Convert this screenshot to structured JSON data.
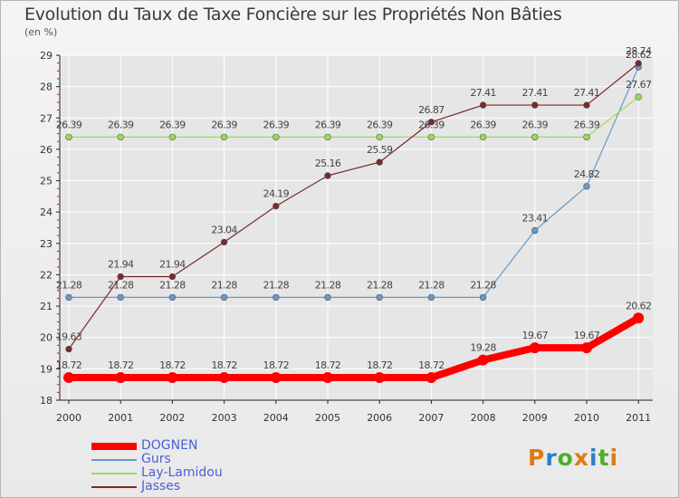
{
  "title": "Evolution du Taux de Taxe Foncière sur les Propriétés Non Bâties",
  "subtitle": "(en %)",
  "logo_text": "Proxiti",
  "chart_data": {
    "type": "line",
    "title": "Evolution du Taux de Taxe Foncière sur les Propriétés Non Bâties",
    "ylabel": "(en %)",
    "xlabel": "",
    "x": [
      "2000",
      "2001",
      "2002",
      "2003",
      "2004",
      "2005",
      "2006",
      "2007",
      "2008",
      "2009",
      "2010",
      "2011"
    ],
    "ylim": [
      18,
      29
    ],
    "yticks": [
      18,
      19,
      20,
      21,
      22,
      23,
      24,
      25,
      26,
      27,
      28,
      29
    ],
    "grid": true,
    "legend_position": "bottom-left",
    "series": [
      {
        "name": "DOGNEN",
        "color": "#ff0000",
        "emphasis": true,
        "values": [
          18.72,
          18.72,
          18.72,
          18.72,
          18.72,
          18.72,
          18.72,
          18.72,
          19.28,
          19.67,
          19.67,
          20.62
        ],
        "labels": [
          "18.72",
          "18.72",
          "18.72",
          "18.72",
          "18.72",
          "18.72",
          "18.72",
          "18.72",
          "19.28",
          "19.67",
          "19.67",
          "20.62"
        ]
      },
      {
        "name": "Gurs",
        "color": "#6699cc",
        "values": [
          21.28,
          21.28,
          21.28,
          21.28,
          21.28,
          21.28,
          21.28,
          21.28,
          21.28,
          23.41,
          24.82,
          28.62
        ],
        "labels": [
          "21.28",
          "21.28",
          "21.28",
          "21.28",
          "21.28",
          "21.28",
          "21.28",
          "21.28",
          "21.28",
          "23.41",
          "24.82",
          "28.62"
        ]
      },
      {
        "name": "Lay-Lamidou",
        "color": "#99dd55",
        "values": [
          26.39,
          26.39,
          26.39,
          26.39,
          26.39,
          26.39,
          26.39,
          26.39,
          26.39,
          26.39,
          26.39,
          27.67
        ],
        "labels": [
          "26.39",
          "26.39",
          "26.39",
          "26.39",
          "26.39",
          "26.39",
          "26.39",
          "26.39",
          "26.39",
          "26.39",
          "26.39",
          "27.67"
        ]
      },
      {
        "name": "Jasses",
        "color": "#7a2a2a",
        "values": [
          19.63,
          21.94,
          21.94,
          23.04,
          24.19,
          25.16,
          25.59,
          26.87,
          27.41,
          27.41,
          27.41,
          28.74
        ],
        "labels": [
          "19.63",
          "21.94",
          "21.94",
          "23.04",
          "24.19",
          "25.16",
          "25.59",
          "26.87",
          "27.41",
          "27.41",
          "27.41",
          "28.74"
        ]
      }
    ]
  }
}
